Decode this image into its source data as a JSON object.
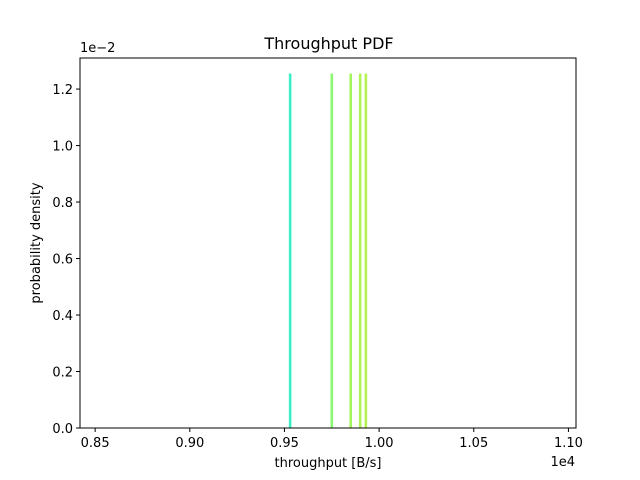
{
  "chart_data": {
    "type": "bar",
    "title": "Throughput PDF",
    "xlabel": "throughput [B/s]",
    "ylabel": "probability density",
    "x_offset_text": "1e4",
    "y_offset_text": "1e−2",
    "xlim": [
      0.842,
      1.104
    ],
    "ylim": [
      0,
      1.31
    ],
    "x_ticks": [
      0.85,
      0.9,
      0.95,
      1.0,
      1.05,
      1.1
    ],
    "x_tick_labels": [
      "0.85",
      "0.90",
      "0.95",
      "1.00",
      "1.05",
      "1.10"
    ],
    "y_ticks": [
      0.0,
      0.2,
      0.4,
      0.6,
      0.8,
      1.0,
      1.2
    ],
    "y_tick_labels": [
      "0.0",
      "0.2",
      "0.4",
      "0.6",
      "0.8",
      "1.0",
      "1.2"
    ],
    "grid": false,
    "bars": [
      {
        "x": 0.953,
        "value": 1.255,
        "color": "#3ceec6"
      },
      {
        "x": 0.975,
        "value": 1.255,
        "color": "#8cf870"
      },
      {
        "x": 0.985,
        "value": 1.255,
        "color": "#a3f55f"
      },
      {
        "x": 0.99,
        "value": 1.255,
        "color": "#aef458"
      },
      {
        "x": 0.993,
        "value": 1.255,
        "color": "#b3f353"
      }
    ]
  }
}
